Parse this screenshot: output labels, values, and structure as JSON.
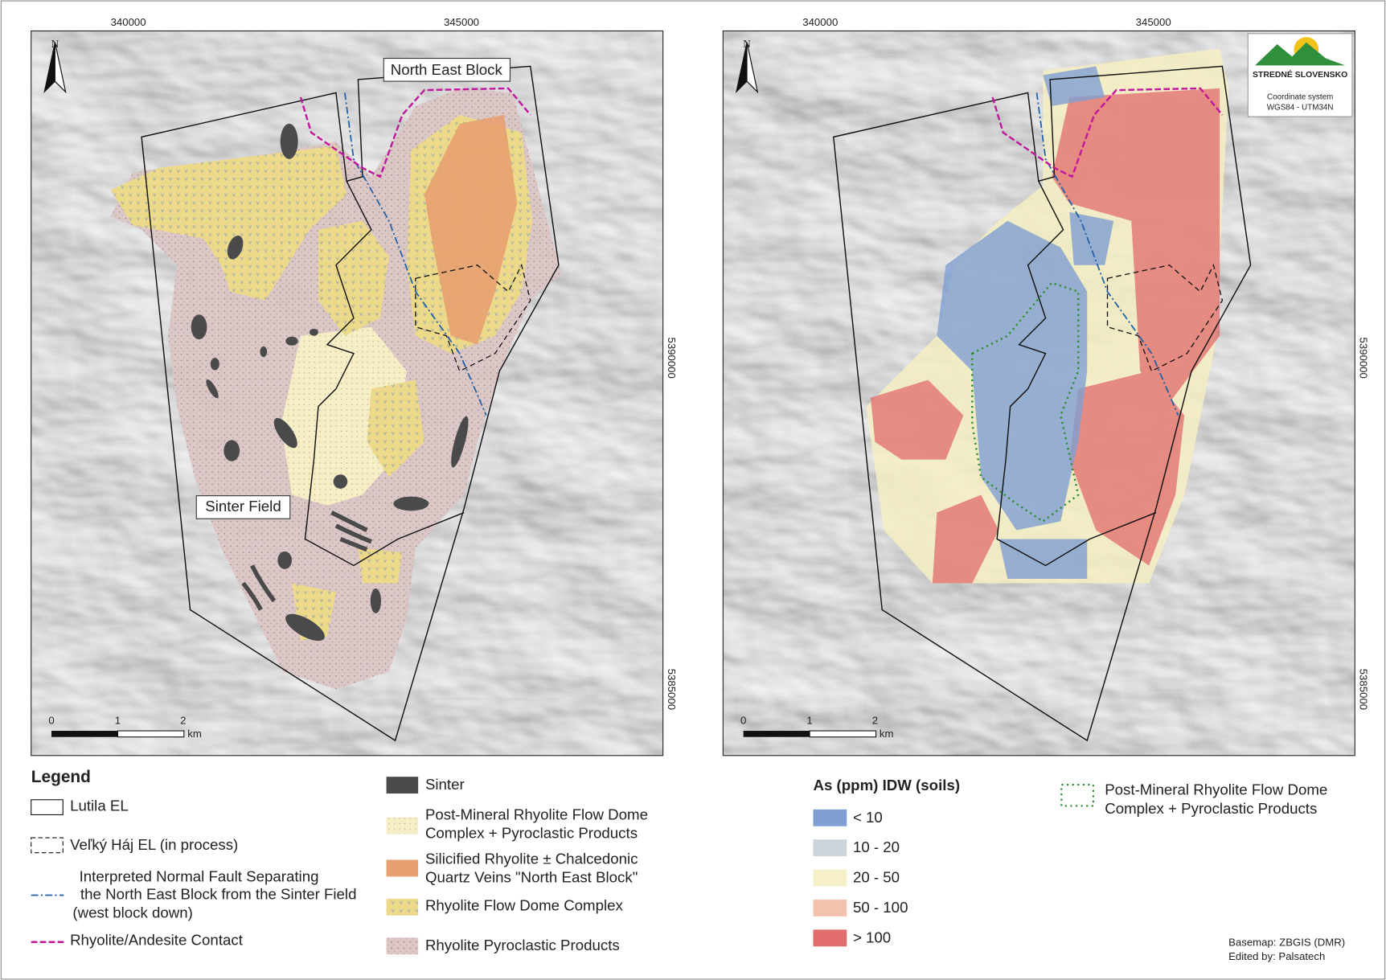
{
  "left_map": {
    "x_ticks": [
      "340000",
      "345000"
    ],
    "y_ticks": [
      "5390000",
      "5385000"
    ],
    "north": "N",
    "labels": [
      "North East Block",
      "Sinter Field"
    ],
    "scale": [
      "0",
      "1",
      "2",
      "km"
    ]
  },
  "right_map": {
    "x_ticks": [
      "340000",
      "345000"
    ],
    "y_ticks": [
      "5390000",
      "5385000"
    ],
    "north": "N",
    "scale": [
      "0",
      "1",
      "2",
      "km"
    ],
    "logo": {
      "name": "STREDNÉ SLOVENSKO",
      "lines": [
        "Coordinate system",
        "WGS84 - UTM34N"
      ]
    }
  },
  "legend": {
    "title": "Legend",
    "items": [
      {
        "lines": [
          "Lutila EL"
        ]
      },
      {
        "lines": [
          "Veľký Háj EL (in process)"
        ]
      },
      {
        "lines": [
          "Interpreted Normal Fault Separating",
          "the North East Block from the Sinter Field",
          "(west block down)"
        ]
      },
      {
        "lines": [
          "Rhyolite/Andesite Contact"
        ]
      },
      {
        "lines": [
          "Sinter"
        ]
      },
      {
        "lines": [
          "Post-Mineral Rhyolite Flow Dome",
          "Complex + Pyroclastic Products"
        ]
      },
      {
        "lines": [
          "Silicified Rhyolite ± Chalcedonic",
          "Quartz Veins \"North East Block\""
        ]
      },
      {
        "lines": [
          "Rhyolite Flow Dome Complex"
        ]
      },
      {
        "lines": [
          "Rhyolite Pyroclastic Products"
        ]
      }
    ]
  },
  "as_legend": {
    "title": "As (ppm) IDW (soils)",
    "classes": [
      "< 10",
      "10 - 20",
      "20 - 50",
      "50 - 100",
      "> 100"
    ],
    "outline": [
      "Post-Mineral Rhyolite Flow Dome",
      "Complex + Pyroclastic Products"
    ]
  },
  "credits": [
    "Basemap: ZBGIS (DMR)",
    "Edited by: Palsatech"
  ]
}
